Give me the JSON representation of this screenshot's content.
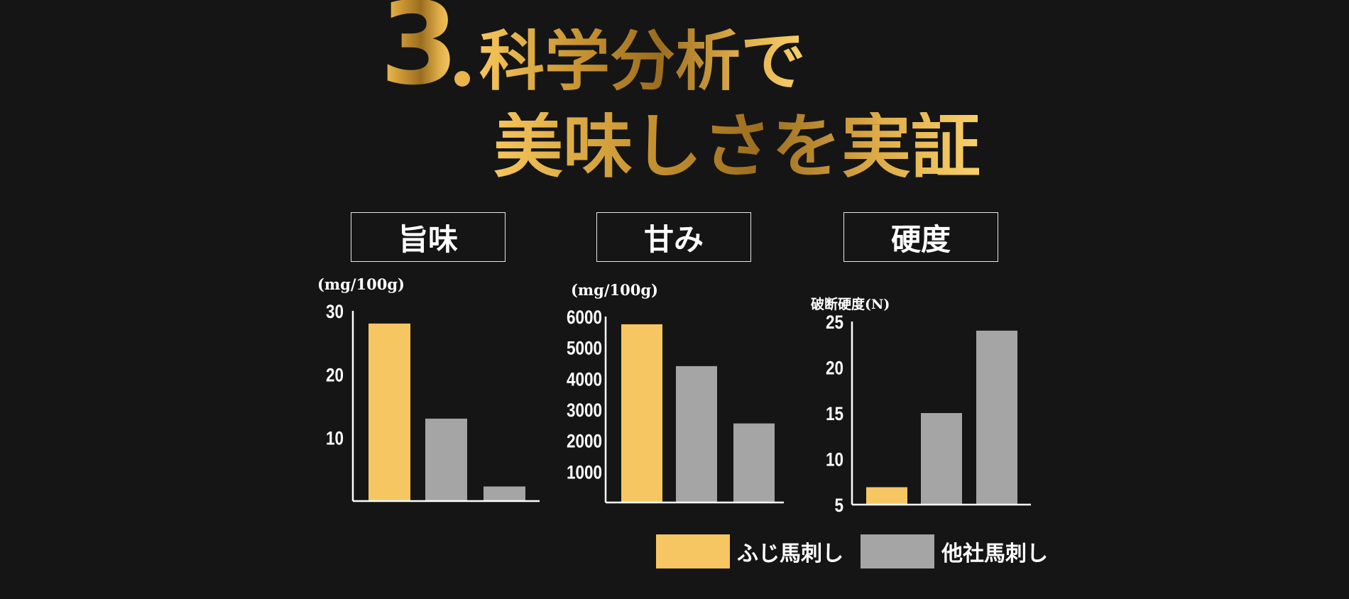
{
  "heading": {
    "number": "3",
    "line1": "科学分析で",
    "line2": "美味しさを実証"
  },
  "colors": {
    "background": "#151515",
    "fuji": "#f6c662",
    "other": "#a5a5a5",
    "axis": "#ffffff"
  },
  "legend": [
    {
      "label": "ふじ馬刺し",
      "color": "#f6c662"
    },
    {
      "label": "他社馬刺し",
      "color": "#a5a5a5"
    }
  ],
  "chart_data": [
    {
      "type": "bar",
      "title": "旨味",
      "ylabel": "(mg/100g)",
      "ylim": [
        0,
        30
      ],
      "yticks": [
        10,
        20,
        30
      ],
      "values": [
        28,
        13,
        2.3
      ],
      "colors": [
        "#f6c662",
        "#a5a5a5",
        "#a5a5a5"
      ]
    },
    {
      "type": "bar",
      "title": "甘み",
      "ylabel": "(mg/100g)",
      "ylim": [
        0,
        6000
      ],
      "yticks": [
        1000,
        2000,
        3000,
        4000,
        5000,
        6000
      ],
      "values": [
        5750,
        4400,
        2550
      ],
      "colors": [
        "#f6c662",
        "#a5a5a5",
        "#a5a5a5"
      ]
    },
    {
      "type": "bar",
      "title": "硬度",
      "ylabel": "破断硬度(N)",
      "ylim": [
        5,
        25
      ],
      "yticks": [
        5,
        10,
        15,
        20,
        25
      ],
      "values": [
        6.9,
        15,
        24
      ],
      "colors": [
        "#f6c662",
        "#a5a5a5",
        "#a5a5a5"
      ]
    }
  ]
}
